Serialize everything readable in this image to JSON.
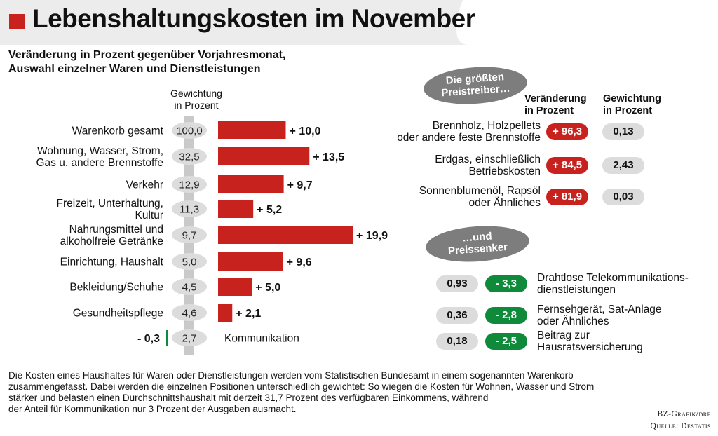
{
  "title": "Lebenshaltungskosten im November",
  "subtitle_line1": "Veränderung in Prozent gegenüber Vorjahresmonat,",
  "subtitle_line2": "Auswahl einzelner Waren und Dienstleistungen",
  "weight_header_line1": "Gewichtung",
  "weight_header_line2": "in Prozent",
  "colors": {
    "bar": "#c8221f",
    "negative_bar": "#0f8a3b",
    "pill": "#dcdcdc",
    "axis": "#c9c9c9",
    "header_band": "#ececec",
    "label_pill": "#7d7d7d"
  },
  "chart_data": {
    "type": "bar",
    "orientation": "horizontal",
    "title": "Lebenshaltungskosten im November",
    "subtitle": "Veränderung in Prozent gegenüber Vorjahresmonat, Auswahl einzelner Waren und Dienstleistungen",
    "categories": [
      [
        "Warenkorb gesamt"
      ],
      [
        "Wohnung, Wasser, Strom,",
        "Gas u. andere Brennstoffe"
      ],
      [
        "Verkehr"
      ],
      [
        "Freizeit, Unterhaltung,",
        "Kultur"
      ],
      [
        "Nahrungsmittel und",
        "alkoholfreie Getränke"
      ],
      [
        "Einrichtung, Haushalt"
      ],
      [
        "Bekleidung/Schuhe"
      ],
      [
        "Gesundheitspflege"
      ],
      [
        "Kommunikation"
      ]
    ],
    "values": [
      10.0,
      13.5,
      9.7,
      5.2,
      19.9,
      9.6,
      5.0,
      2.1,
      -0.3
    ],
    "value_labels": [
      "+ 10,0",
      "+ 13,5",
      "+ 9,7",
      "+ 5,2",
      "+ 19,9",
      "+ 9,6",
      "+ 5,0",
      "+ 2,1",
      "- 0,3"
    ],
    "weights": [
      "100,0",
      "32,5",
      "12,9",
      "11,3",
      "9,7",
      "5,0",
      "4,5",
      "4,6",
      "2,7"
    ],
    "xlim": [
      0,
      20
    ],
    "grid": false
  },
  "drivers": {
    "pill_line1": "Die größten",
    "pill_line2": "Preistreiber…",
    "col_change_line1": "Veränderung",
    "col_change_line2": "in Prozent",
    "col_weight_line1": "Gewichtung",
    "col_weight_line2": "in Prozent",
    "items": [
      {
        "label": [
          "Brennholz, Holzpellets",
          "oder andere feste Brennstoffe"
        ],
        "change": "+ 96,3",
        "weight": "0,13"
      },
      {
        "label": [
          "Erdgas, einschließlich",
          "Betriebskosten"
        ],
        "change": "+ 84,5",
        "weight": "2,43"
      },
      {
        "label": [
          "Sonnenblumenöl, Rapsöl",
          "oder Ähnliches"
        ],
        "change": "+ 81,9",
        "weight": "0,03"
      }
    ]
  },
  "sinkers": {
    "pill_line1": "…und",
    "pill_line2": "Preissenker",
    "items": [
      {
        "label": [
          "Drahtlose Telekommunikations-",
          "dienstleistungen"
        ],
        "change": "- 3,3",
        "weight": "0,93"
      },
      {
        "label": [
          "Fernsehgerät, Sat-Anlage",
          "oder Ähnliches"
        ],
        "change": "- 2,8",
        "weight": "0,36"
      },
      {
        "label": [
          "Beitrag zur",
          "Hausratsversicherung"
        ],
        "change": "- 2,5",
        "weight": "0,18"
      }
    ]
  },
  "footer": [
    "Die Kosten eines Haushaltes für Waren oder Dienstleistungen werden vom Statistischen Bundesamt in einem sogenannten Warenkorb",
    "zusammengefasst. Dabei werden die einzelnen Positionen unterschiedlich gewichtet: So wiegen die Kosten für Wohnen, Wasser und Strom",
    "stärker und belasten einen Durchschnittshaushalt mit derzeit 31,7 Prozent des verfügbaren Einkommens, während",
    "der Anteil für Kommunikation nur 3 Prozent der Ausgaben ausmacht."
  ],
  "credit_line1": "BZ-Grafik/dre",
  "credit_line2": "Quelle: Destatis"
}
